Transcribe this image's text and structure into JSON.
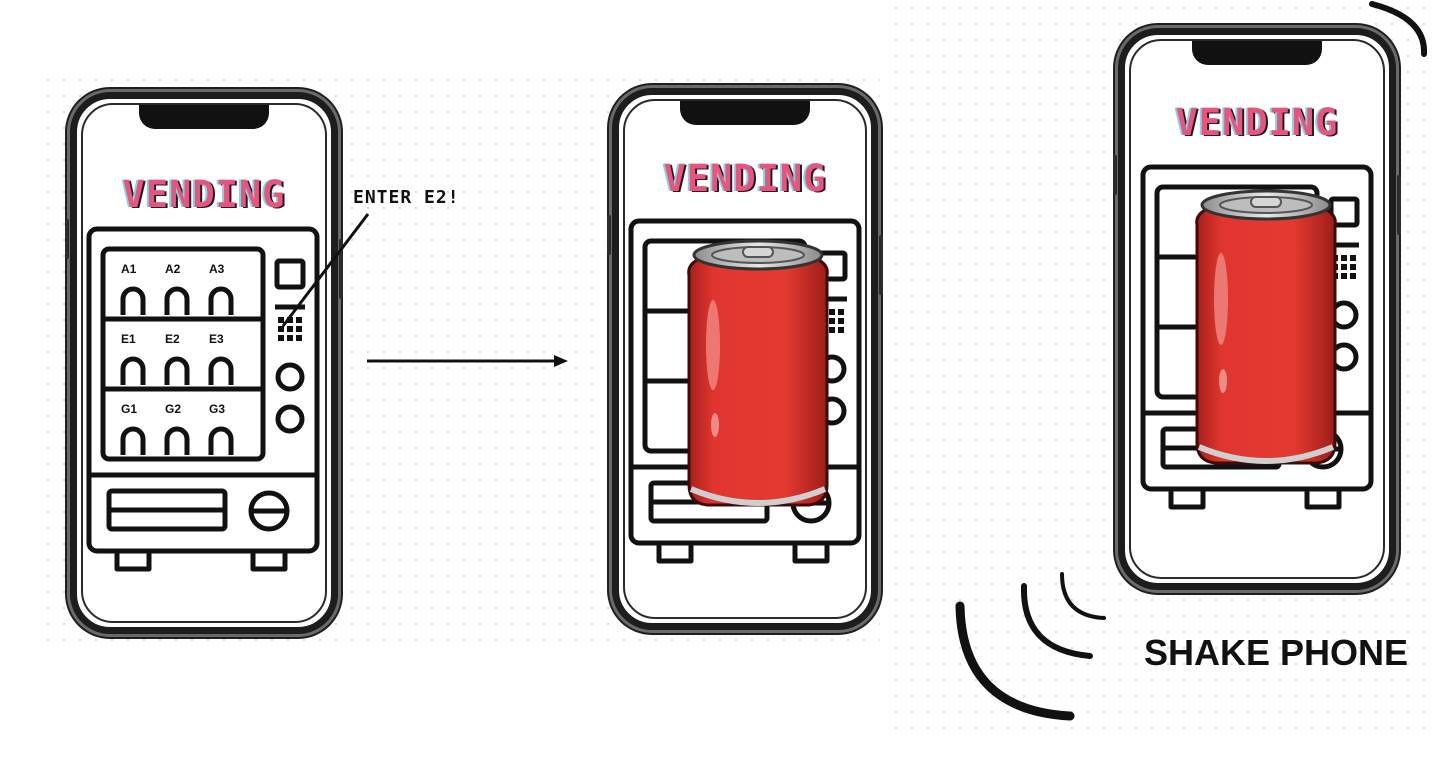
{
  "phones": [
    {
      "title": "VENDING",
      "slots": [
        [
          "A1",
          "A2",
          "A3"
        ],
        [
          "E1",
          "E2",
          "E3"
        ],
        [
          "G1",
          "G2",
          "G3"
        ]
      ]
    },
    {
      "title": "VENDING"
    },
    {
      "title": "VENDING"
    }
  ],
  "annotations": {
    "enter_code": "ENTER E2!",
    "shake": "SHAKE PHONE"
  },
  "colors": {
    "title_pink": "#e8547e",
    "title_cyan": "#7fd7e3",
    "can_red": "#e0362f",
    "outline": "#111111"
  },
  "icons": [
    "phone-frame",
    "vending-machine-icon",
    "soda-can-icon",
    "arrow-right-icon",
    "shake-waves-icon"
  ]
}
